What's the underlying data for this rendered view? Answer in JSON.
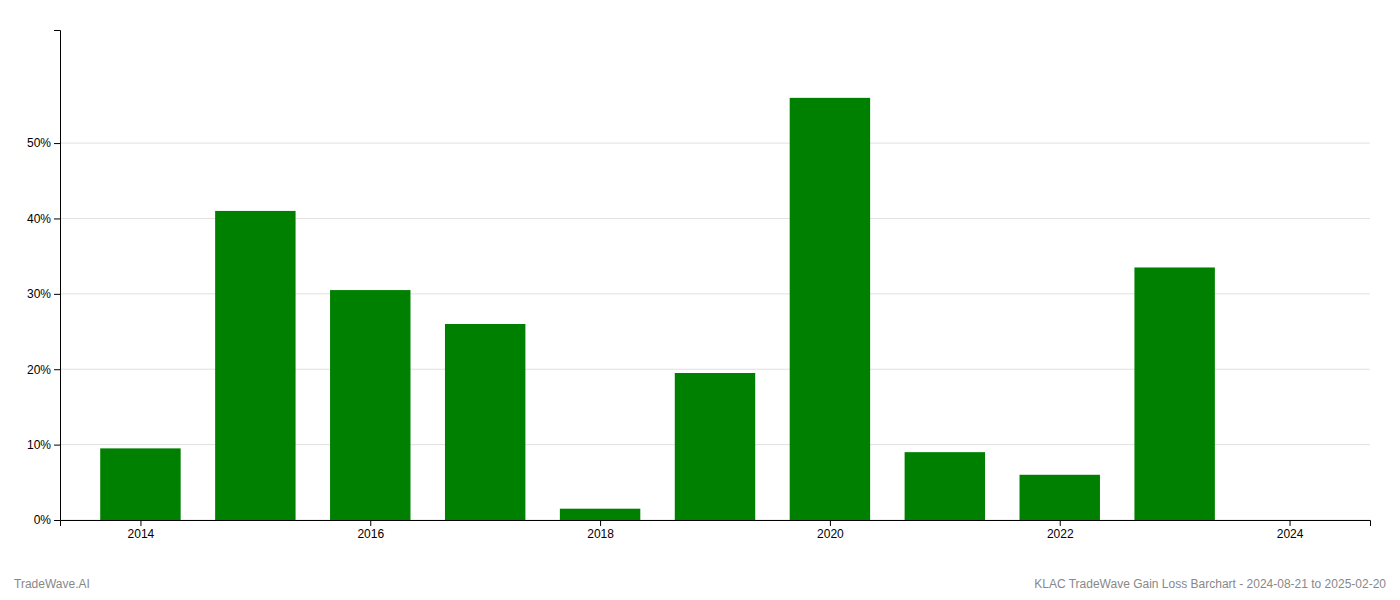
{
  "chart_data": {
    "type": "bar",
    "x": [
      2014,
      2015,
      2016,
      2017,
      2018,
      2019,
      2020,
      2021,
      2022,
      2023,
      2024
    ],
    "values": [
      0.095,
      0.41,
      0.305,
      0.26,
      0.015,
      0.195,
      0.56,
      0.09,
      0.06,
      0.335,
      0.0
    ],
    "color": "#008000",
    "xlim": [
      2013.3,
      2024.7
    ],
    "xticks": [
      2014,
      2016,
      2018,
      2020,
      2022,
      2024
    ],
    "ylim": [
      0,
      0.65
    ],
    "yticks": [
      {
        "value": 0.0,
        "label": "0%"
      },
      {
        "value": 0.1,
        "label": "10%"
      },
      {
        "value": 0.2,
        "label": "20%"
      },
      {
        "value": 0.3,
        "label": "30%"
      },
      {
        "value": 0.4,
        "label": "40%"
      },
      {
        "value": 0.5,
        "label": "50%"
      }
    ],
    "grid": true,
    "annotations": [
      "TradeWave.AI",
      "KLAC TradeWave Gain Loss Barchart - 2024-08-21 to 2025-02-20"
    ]
  }
}
